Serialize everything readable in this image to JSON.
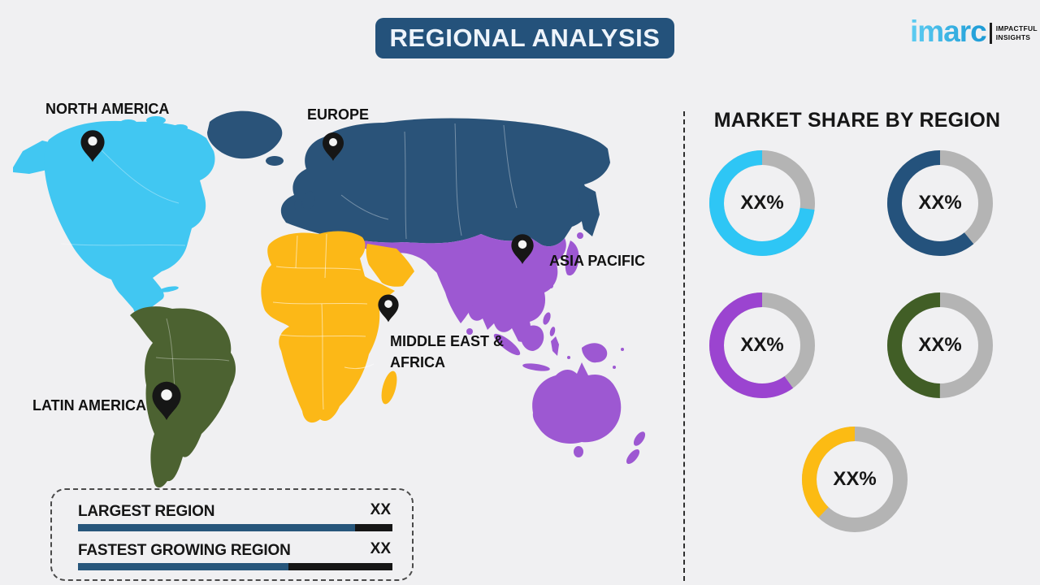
{
  "header": {
    "title": "REGIONAL ANALYSIS",
    "banner_color": "#24527b"
  },
  "logo": {
    "brand": "imarc",
    "tagline_line1": "IMPACTFUL",
    "tagline_line2": "INSIGHTS",
    "brand_color": "#2ab3e8"
  },
  "map": {
    "pin_color": "#161616",
    "regions": [
      {
        "id": "north-america",
        "label": "NORTH AMERICA",
        "color": "#41c7f2"
      },
      {
        "id": "europe",
        "label": "EUROPE",
        "color": "#2a5379"
      },
      {
        "id": "asia-pacific",
        "label": "ASIA PACIFIC",
        "color": "#9d58d2"
      },
      {
        "id": "middle-east-africa",
        "label": "MIDDLE EAST & AFRICA",
        "label_line1": "MIDDLE EAST &",
        "label_line2": "AFRICA",
        "color": "#fcb817"
      },
      {
        "id": "latin-america",
        "label": "LATIN AMERICA",
        "color": "#4c6231"
      }
    ]
  },
  "legend": {
    "bar_color": "#27567b",
    "bar_remainder_color": "#161616",
    "rows": [
      {
        "label": "LARGEST REGION",
        "value": "XX",
        "bar_fill_pct": 88
      },
      {
        "label": "FASTEST GROWING REGION",
        "value": "XX",
        "bar_fill_pct": 67
      }
    ]
  },
  "panel": {
    "title": "MARKET SHARE BY REGION",
    "track_color": "#b4b4b4",
    "donuts": [
      {
        "region": "North America",
        "value_label": "XX%",
        "color": "#2ec6f5",
        "colored_pct": 73
      },
      {
        "region": "Europe",
        "value_label": "XX%",
        "color": "#24527c",
        "colored_pct": 61
      },
      {
        "region": "Asia Pacific",
        "value_label": "XX%",
        "color": "#9b44d0",
        "colored_pct": 60
      },
      {
        "region": "Latin America",
        "value_label": "XX%",
        "color": "#415e26",
        "colored_pct": 50
      },
      {
        "region": "Middle East & Africa",
        "value_label": "XX%",
        "color": "#fcbb13",
        "colored_pct": 38
      }
    ]
  },
  "chart_data": [
    {
      "type": "pie",
      "title": "MARKET SHARE BY REGION",
      "note": "Five donut gauges with placeholder values",
      "series": [
        {
          "name": "North America",
          "label": "XX%",
          "shown_fraction": 0.73
        },
        {
          "name": "Europe",
          "label": "XX%",
          "shown_fraction": 0.61
        },
        {
          "name": "Asia Pacific",
          "label": "XX%",
          "shown_fraction": 0.6
        },
        {
          "name": "Latin America",
          "label": "XX%",
          "shown_fraction": 0.5
        },
        {
          "name": "Middle East & Africa",
          "label": "XX%",
          "shown_fraction": 0.38
        }
      ]
    },
    {
      "type": "bar",
      "categories": [
        "LARGEST REGION",
        "FASTEST GROWING REGION"
      ],
      "values_label": [
        "XX",
        "XX"
      ],
      "shown_fraction": [
        0.88,
        0.67
      ]
    }
  ]
}
